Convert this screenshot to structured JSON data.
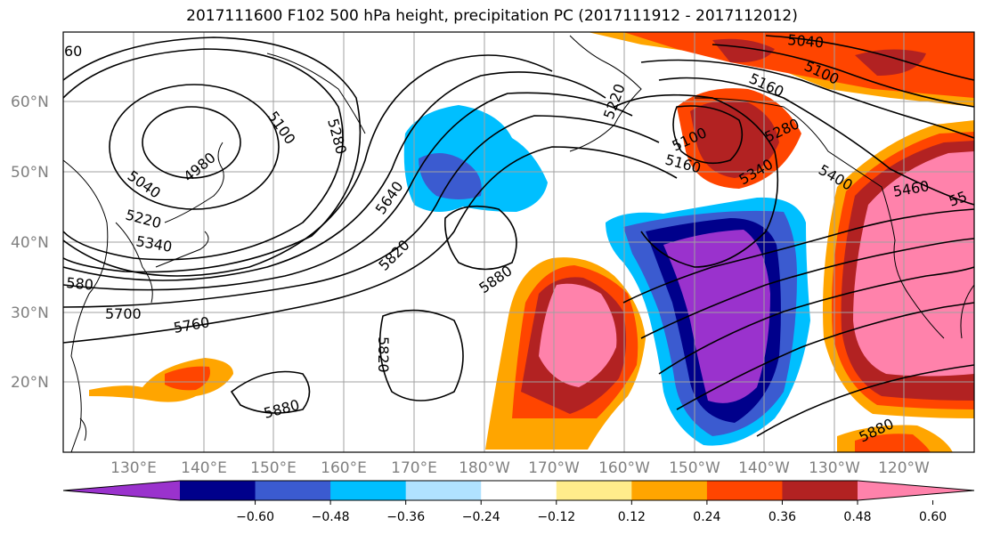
{
  "title": "2017111600 F102 500 hPa height, precipitation PC (2017111912 - 2017112012)",
  "map": {
    "lat_labels": [
      "60°N",
      "50°N",
      "40°N",
      "30°N",
      "20°N"
    ],
    "lon_labels": [
      "130°E",
      "140°E",
      "150°E",
      "160°E",
      "170°E",
      "180°W",
      "170°W",
      "160°W",
      "150°W",
      "140°W",
      "130°W",
      "120°W"
    ],
    "contour_labels": [
      "60",
      "5100",
      "5280",
      "4980",
      "5040",
      "5220",
      "5340",
      "580",
      "5700",
      "5760",
      "5640",
      "5820",
      "5880",
      "5820",
      "5880",
      "5220",
      "5100",
      "5160",
      "5280",
      "5340",
      "5400",
      "5460",
      "55",
      "5040",
      "5100",
      "5160",
      "5880"
    ]
  },
  "colorbar": {
    "ticks": [
      "−0.60",
      "−0.48",
      "−0.36",
      "−0.24",
      "−0.12",
      "0.12",
      "0.24",
      "0.36",
      "0.48",
      "0.60"
    ],
    "colors": [
      "#9a32cd",
      "#00008b",
      "#3b5bd0",
      "#00bfff",
      "#b0e2ff",
      "#ffffff",
      "#ffec8b",
      "#ffa500",
      "#ff4500",
      "#b22222",
      "#ff82ab"
    ]
  }
}
